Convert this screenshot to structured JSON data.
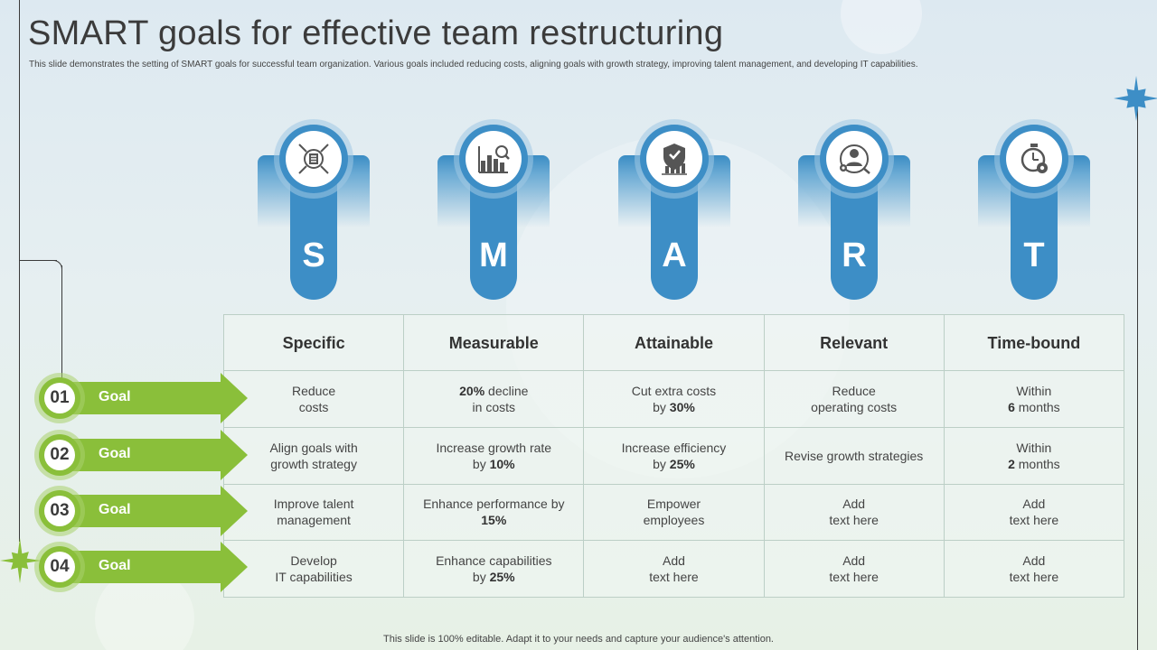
{
  "title": "SMART goals for effective team restructuring",
  "subtitle": "This slide demonstrates the setting of SMART goals for successful team organization. Various goals included reducing costs, aligning goals with growth strategy, improving talent management, and developing IT capabilities.",
  "footer": "This slide is 100% editable. Adapt it to your needs and capture your audience's attention.",
  "colors": {
    "accent_blue": "#3d8ec6",
    "accent_green": "#8abf3a",
    "text_dark": "#333333"
  },
  "pillars": [
    {
      "letter": "S",
      "icon": "checklist-target-icon"
    },
    {
      "letter": "M",
      "icon": "bar-chart-magnifier-icon"
    },
    {
      "letter": "A",
      "icon": "shield-chart-icon"
    },
    {
      "letter": "R",
      "icon": "person-gear-target-icon"
    },
    {
      "letter": "T",
      "icon": "stopwatch-gear-icon"
    }
  ],
  "table": {
    "headers": [
      "Specific",
      "Measurable",
      "Attainable",
      "Relevant",
      "Time-bound"
    ],
    "rows": [
      [
        {
          "l1": "Reduce",
          "l2": "costs"
        },
        {
          "l1b": "20%",
          "l1": " decline",
          "l2": "in costs"
        },
        {
          "l1": "Cut extra costs",
          "l2": "by ",
          "l2b": "30%"
        },
        {
          "l1": "Reduce",
          "l2": "operating costs"
        },
        {
          "l1": "Within",
          "l2b": "6",
          "l2": " months"
        }
      ],
      [
        {
          "l1": "Align goals with",
          "l2": "growth strategy"
        },
        {
          "l1": "Increase growth rate",
          "l2": "by ",
          "l2b": "10%"
        },
        {
          "l1": "Increase efficiency",
          "l2": "by ",
          "l2b": "25%"
        },
        {
          "l1": "Revise growth strategies"
        },
        {
          "l1": "Within",
          "l2b": "2",
          "l2": " months"
        }
      ],
      [
        {
          "l1": "Improve talent",
          "l2": "management"
        },
        {
          "l1": "Enhance performance by",
          "l2b": "15%"
        },
        {
          "l1": "Empower",
          "l2": "employees"
        },
        {
          "l1": "Add",
          "l2": "text here"
        },
        {
          "l1": "Add",
          "l2": "text here"
        }
      ],
      [
        {
          "l1": "Develop",
          "l2": "IT capabilities"
        },
        {
          "l1": "Enhance capabilities",
          "l2": "by ",
          "l2b": "25%"
        },
        {
          "l1": "Add",
          "l2": "text here"
        },
        {
          "l1": "Add",
          "l2": "text here"
        },
        {
          "l1": "Add",
          "l2": "text here"
        }
      ]
    ]
  },
  "goals": [
    {
      "number": "01",
      "label": "Goal"
    },
    {
      "number": "02",
      "label": "Goal"
    },
    {
      "number": "03",
      "label": "Goal"
    },
    {
      "number": "04",
      "label": "Goal"
    }
  ]
}
